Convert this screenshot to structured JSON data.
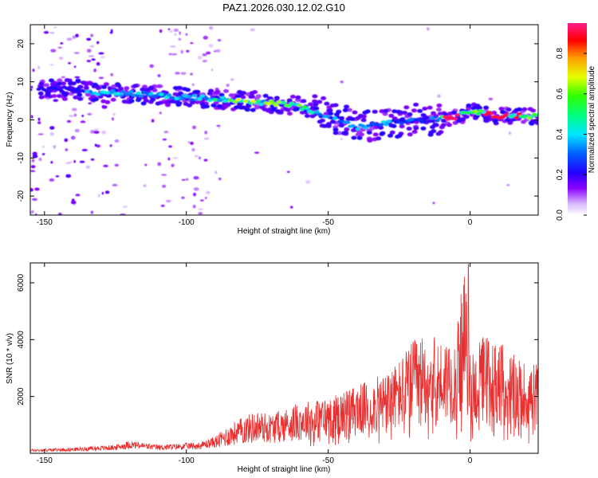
{
  "figure_title": "PAZ1.2026.030.12.02.G10",
  "chart_data": [
    {
      "type": "heatmap",
      "title": "PAZ1.2026.030.12.02.G10",
      "xlabel": "Height of straight line (km)",
      "ylabel": "Frequency (Hz)",
      "xlim": [
        -155,
        24
      ],
      "ylim": [
        -25,
        25
      ],
      "xticks": [
        -150,
        -100,
        -50,
        0
      ],
      "yticks": [
        -20,
        -10,
        0,
        10,
        20
      ],
      "colorbar": {
        "label": "Normalized spectral amplitude",
        "range": [
          0,
          0.95
        ],
        "ticks": [
          0.0,
          0.2,
          0.4,
          0.6,
          0.8
        ]
      },
      "ridge": {
        "description_points_x": [
          -150,
          -140,
          -130,
          -120,
          -110,
          -100,
          -90,
          -80,
          -70,
          -60,
          -50,
          -45,
          -40,
          -30,
          -20,
          -15,
          -10,
          -5,
          0,
          5,
          10,
          15,
          20,
          24
        ],
        "description_points_y": [
          8,
          8,
          7,
          7,
          6.5,
          6,
          5.5,
          5,
          4.5,
          3.5,
          1,
          0,
          -2,
          -1,
          0,
          0,
          0.5,
          0.5,
          2.5,
          1.5,
          1,
          1,
          1,
          1
        ],
        "peak_value": 0.95
      }
    },
    {
      "type": "line",
      "xlabel": "Height of straight line (km)",
      "ylabel": "SNR (10 * v/v)",
      "xlim": [
        -155,
        24
      ],
      "ylim": [
        0,
        6700
      ],
      "xticks": [
        -150,
        -100,
        -50,
        0
      ],
      "yticks": [
        2000,
        4000,
        6000
      ],
      "series": [
        {
          "name": "SNR",
          "color": "#e83030",
          "envelope_x": [
            -155,
            -140,
            -125,
            -120,
            -110,
            -95,
            -90,
            -85,
            -80,
            -75,
            -70,
            -60,
            -50,
            -40,
            -30,
            -25,
            -20,
            -15,
            -10,
            -5,
            -2,
            0,
            2,
            5,
            10,
            15,
            20,
            24
          ],
          "envelope_y": [
            150,
            200,
            300,
            450,
            300,
            400,
            600,
            1000,
            1300,
            1500,
            1400,
            1800,
            2000,
            2400,
            2800,
            3300,
            4000,
            4200,
            4000,
            4400,
            6400,
            4000,
            3600,
            4300,
            4000,
            3500,
            3200,
            3200
          ]
        }
      ]
    }
  ]
}
